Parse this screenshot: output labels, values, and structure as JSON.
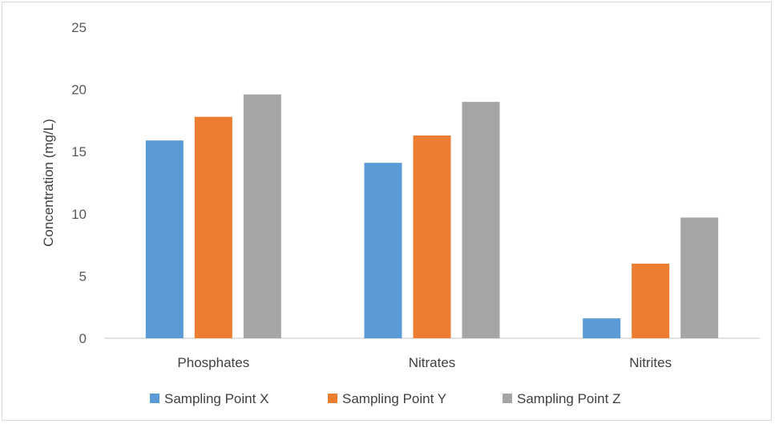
{
  "chart_data": {
    "type": "bar",
    "title": "",
    "xlabel": "",
    "ylabel": "Concentration (mg/L)",
    "ylim": [
      0,
      25
    ],
    "yticks": [
      "0",
      "5",
      "10",
      "15",
      "20",
      "25"
    ],
    "categories": [
      "Phosphates",
      "Nitrates",
      "Nitrites"
    ],
    "series": [
      {
        "name": "Sampling Point X",
        "color": "#5b9bd5",
        "values": [
          15.9,
          14.1,
          1.6
        ]
      },
      {
        "name": "Sampling Point Y",
        "color": "#ed7d31",
        "values": [
          17.8,
          16.3,
          6.0
        ]
      },
      {
        "name": "Sampling Point Z",
        "color": "#a5a5a5",
        "values": [
          19.6,
          19.0,
          9.7
        ]
      }
    ],
    "grid": false,
    "legend_position": "bottom"
  }
}
